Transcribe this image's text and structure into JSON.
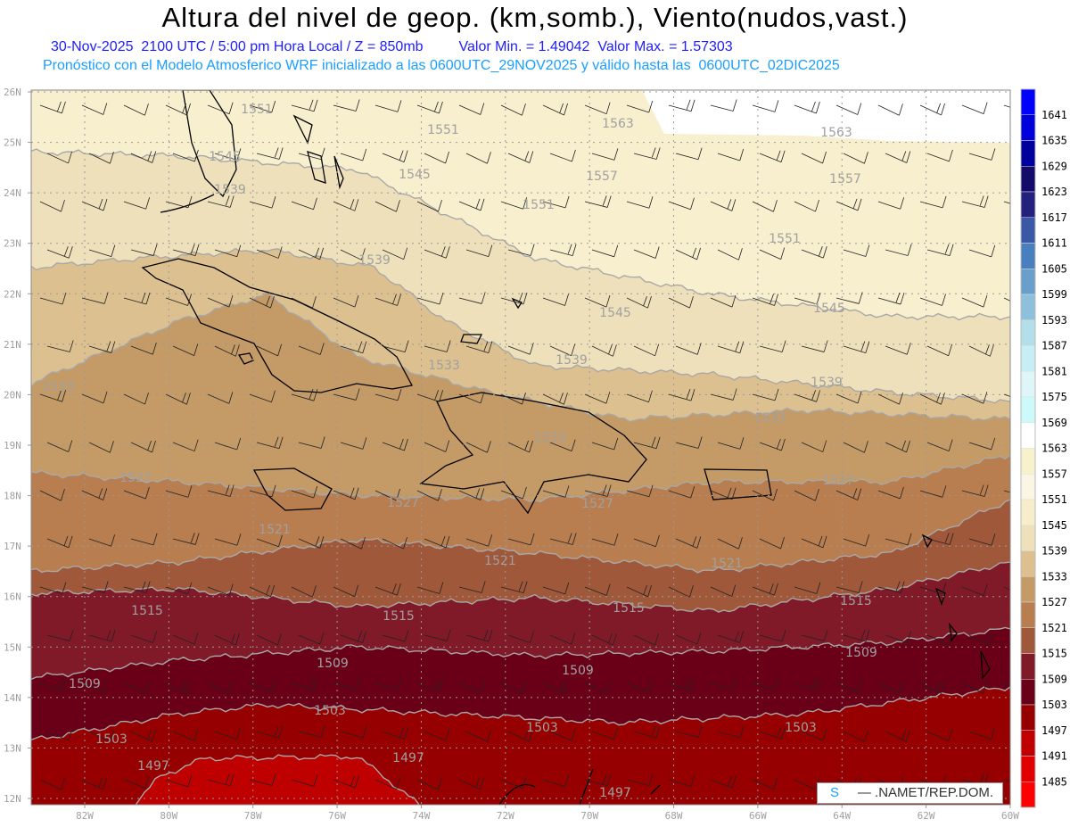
{
  "header": {
    "title": "Altura del nivel de geop. (km,somb.), Viento(nudos,vast.)",
    "datetime": "30-Nov-2025  2100 UTC / 5:00 pm Hora Local / Z = 850mb",
    "minmax": "Valor Min. = 1.49042  Valor Max. = 1.57303",
    "model_info": "Pronóstico con el Modelo Atmosferico WRF inicializado a las 0600UTC_29NOV2025 y válido hasta las  0600UTC_02DIC2025"
  },
  "axes": {
    "lat_labels": [
      "26N",
      "25N",
      "24N",
      "23N",
      "22N",
      "21N",
      "20N",
      "19N",
      "18N",
      "17N",
      "16N",
      "15N",
      "14N",
      "13N",
      "12N"
    ],
    "lon_labels": [
      "82W",
      "80W",
      "78W",
      "76W",
      "74W",
      "72W",
      "70W",
      "68W",
      "66W",
      "64W",
      "62W",
      "60W"
    ]
  },
  "colorbar": {
    "labels": [
      "1641",
      "1635",
      "1629",
      "1623",
      "1617",
      "1611",
      "1605",
      "1599",
      "1593",
      "1587",
      "1581",
      "1575",
      "1569",
      "1563",
      "1557",
      "1551",
      "1545",
      "1539",
      "1533",
      "1527",
      "1521",
      "1515",
      "1509",
      "1503",
      "1497",
      "1491",
      "1485"
    ],
    "colors": [
      "#0000ff",
      "#0000dc",
      "#00009c",
      "#140a6a",
      "#24207e",
      "#3a58a6",
      "#4a7fbf",
      "#6a9fcc",
      "#8ec0dc",
      "#b2dfea",
      "#c6eef4",
      "#dff6f8",
      "#ccfafa",
      "#ffffff",
      "#f8f2cc",
      "#fbf5e4",
      "#f6edcb",
      "#eee0ba",
      "#dcc090",
      "#c49a66",
      "#b87e50",
      "#a0583a",
      "#801a28",
      "#6a0018",
      "#960000",
      "#c00000",
      "#e00000",
      "#ff0000"
    ]
  },
  "contour_labels": [
    "1551",
    "1551",
    "1545",
    "1545",
    "1563",
    "1563",
    "1557",
    "1557",
    "1551",
    "1551",
    "1539",
    "1539",
    "1545",
    "1545",
    "1539",
    "1539",
    "1533",
    "1533",
    "1533",
    "1533",
    "1527",
    "1527",
    "1527",
    "1527",
    "1521",
    "1521",
    "1521",
    "1515",
    "1515",
    "1515",
    "1515",
    "1509",
    "1509",
    "1509",
    "1509",
    "1503",
    "1503",
    "1503",
    "1503",
    "1497",
    "1497",
    "1497"
  ],
  "credit": {
    "s": "S",
    "rest": "     — .NAMET/REP.DOM."
  }
}
